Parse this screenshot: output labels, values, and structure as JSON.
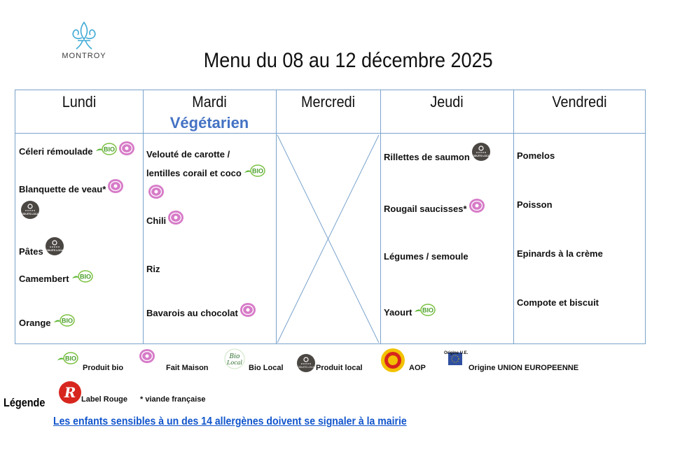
{
  "logo": {
    "text": "MONTROY"
  },
  "title": "Menu du 08 au 12 décembre 2025",
  "days": [
    {
      "name": "Lundi",
      "items": [
        {
          "text": "Céleri rémoulade",
          "icons": [
            "bio",
            "fait-maison"
          ]
        },
        {
          "text": "Blanquette de veau*",
          "icons": [
            "fait-maison",
            "produit-local"
          ]
        },
        {
          "text": "Pâtes",
          "icons": [
            "produit-local"
          ]
        },
        {
          "text": "Camembert",
          "icons": [
            "bio"
          ]
        },
        {
          "text": "Orange",
          "icons": [
            "bio"
          ]
        }
      ]
    },
    {
      "name": "Mardi",
      "subtitle": "Végétarien",
      "items": [
        {
          "text": "Velouté de carotte / lentilles corail et coco",
          "icons": [
            "bio",
            "fait-maison"
          ]
        },
        {
          "text": "Chili",
          "icons": [
            "fait-maison"
          ]
        },
        {
          "text": "Riz",
          "icons": []
        },
        {
          "text": "Bavarois au chocolat",
          "icons": [
            "fait-maison"
          ]
        }
      ]
    },
    {
      "name": "Mercredi",
      "items": []
    },
    {
      "name": "Jeudi",
      "items": [
        {
          "text": "Rillettes de saumon",
          "icons": [
            "produit-local"
          ]
        },
        {
          "text": "Rougail saucisses*",
          "icons": [
            "fait-maison"
          ]
        },
        {
          "text": "Légumes / semoule",
          "icons": []
        },
        {
          "text": "Yaourt",
          "icons": [
            "bio"
          ]
        }
      ]
    },
    {
      "name": "Vendredi",
      "items": [
        {
          "text": "Pomelos",
          "icons": []
        },
        {
          "text": "Poisson",
          "icons": []
        },
        {
          "text": "Epinards à la crème",
          "icons": []
        },
        {
          "text": "Compote et biscuit",
          "icons": []
        }
      ]
    }
  ],
  "legend": {
    "title": "Légende",
    "items": [
      {
        "icon": "bio",
        "label": "Produit bio"
      },
      {
        "icon": "fait-maison",
        "label": "Fait Maison"
      },
      {
        "icon": "bio-local",
        "label": "Bio Local"
      },
      {
        "icon": "produit-local",
        "label": "Produit local"
      },
      {
        "icon": "aop",
        "label": "AOP"
      },
      {
        "icon": "origine-ue",
        "label": "Origine UNION EUROPEENNE",
        "caption": "Origine U.E."
      },
      {
        "icon": "label-rouge",
        "label": "Label Rouge"
      },
      {
        "icon": "none",
        "label": "* viande française"
      }
    ]
  },
  "notice": "Les enfants sensibles à un des 14 allergènes doivent se signaler à la mairie",
  "colors": {
    "border": "#7aa3cc",
    "accent": "#4472c4",
    "link": "#1155cc"
  }
}
